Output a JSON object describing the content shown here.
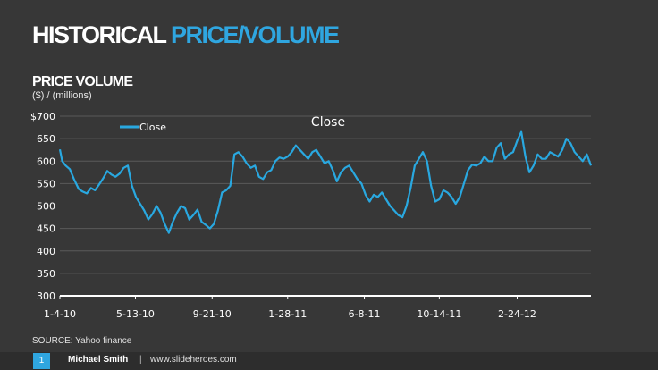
{
  "title": {
    "part1": "HISTORICAL ",
    "part2": "PRICE/VOLUME"
  },
  "subtitle": "PRICE VOLUME",
  "units": "($) / (millions)",
  "source": "SOURCE: Yahoo finance",
  "footer": {
    "page": "1",
    "author": "Michael Smith",
    "separator": "|",
    "site": "www.slideheroes.com"
  },
  "colors": {
    "background": "#373737",
    "accent": "#2fa6e0",
    "line": "#29a8e0",
    "grid": "#5a5a5a"
  },
  "chart_data": {
    "type": "line",
    "title": "Close",
    "legend": {
      "label": "Close",
      "position": "top-left"
    },
    "ylim": [
      300,
      700
    ],
    "yticks": [
      300,
      350,
      400,
      450,
      500,
      550,
      600,
      650,
      700
    ],
    "ytick_labels": [
      "300",
      "350",
      "400",
      "450",
      "500",
      "550",
      "600",
      "650",
      "$700"
    ],
    "xlim": [
      "2010-01-04",
      "2012-06-29"
    ],
    "xticks": [
      "2010-01-04",
      "2010-05-13",
      "2010-09-21",
      "2011-01-28",
      "2011-06-08",
      "2011-10-14",
      "2012-02-24"
    ],
    "xtick_labels": [
      "1-4-10",
      "5-13-10",
      "9-21-10",
      "1-28-11",
      "6-8-11",
      "10-14-11",
      "2-24-12"
    ],
    "grid": true,
    "series": [
      {
        "name": "Close",
        "x": [
          "2010-01-04",
          "2010-01-08",
          "2010-01-14",
          "2010-01-21",
          "2010-01-28",
          "2010-02-05",
          "2010-02-12",
          "2010-02-19",
          "2010-02-26",
          "2010-03-05",
          "2010-03-12",
          "2010-03-19",
          "2010-03-26",
          "2010-04-02",
          "2010-04-09",
          "2010-04-16",
          "2010-04-23",
          "2010-04-30",
          "2010-05-07",
          "2010-05-14",
          "2010-05-21",
          "2010-05-28",
          "2010-06-04",
          "2010-06-11",
          "2010-06-18",
          "2010-06-25",
          "2010-07-02",
          "2010-07-09",
          "2010-07-16",
          "2010-07-23",
          "2010-07-30",
          "2010-08-06",
          "2010-08-13",
          "2010-08-20",
          "2010-08-27",
          "2010-09-03",
          "2010-09-10",
          "2010-09-17",
          "2010-09-24",
          "2010-10-01",
          "2010-10-08",
          "2010-10-15",
          "2010-10-22",
          "2010-10-29",
          "2010-11-05",
          "2010-11-12",
          "2010-11-19",
          "2010-11-26",
          "2010-12-03",
          "2010-12-10",
          "2010-12-17",
          "2010-12-24",
          "2010-12-31",
          "2011-01-07",
          "2011-01-14",
          "2011-01-21",
          "2011-01-28",
          "2011-02-04",
          "2011-02-11",
          "2011-02-18",
          "2011-02-25",
          "2011-03-04",
          "2011-03-11",
          "2011-03-18",
          "2011-03-25",
          "2011-04-01",
          "2011-04-08",
          "2011-04-15",
          "2011-04-22",
          "2011-04-29",
          "2011-05-06",
          "2011-05-13",
          "2011-05-20",
          "2011-05-27",
          "2011-06-03",
          "2011-06-10",
          "2011-06-17",
          "2011-06-24",
          "2011-07-01",
          "2011-07-08",
          "2011-07-15",
          "2011-07-22",
          "2011-07-29",
          "2011-08-05",
          "2011-08-12",
          "2011-08-19",
          "2011-08-26",
          "2011-09-02",
          "2011-09-09",
          "2011-09-16",
          "2011-09-23",
          "2011-09-30",
          "2011-10-07",
          "2011-10-14",
          "2011-10-21",
          "2011-10-28",
          "2011-11-04",
          "2011-11-11",
          "2011-11-18",
          "2011-11-25",
          "2011-12-02",
          "2011-12-09",
          "2011-12-16",
          "2011-12-23",
          "2011-12-30",
          "2012-01-06",
          "2012-01-13",
          "2012-01-20",
          "2012-01-27",
          "2012-02-03",
          "2012-02-10",
          "2012-02-17",
          "2012-02-24",
          "2012-03-02",
          "2012-03-09",
          "2012-03-16",
          "2012-03-23",
          "2012-03-30",
          "2012-04-06",
          "2012-04-13",
          "2012-04-20",
          "2012-04-27",
          "2012-05-04",
          "2012-05-11",
          "2012-05-18",
          "2012-05-25",
          "2012-06-01",
          "2012-06-08",
          "2012-06-15",
          "2012-06-22",
          "2012-06-29"
        ],
        "y": [
          626,
          600,
          590,
          582,
          560,
          538,
          532,
          528,
          540,
          535,
          548,
          562,
          578,
          570,
          565,
          572,
          585,
          590,
          545,
          520,
          505,
          490,
          470,
          482,
          500,
          485,
          460,
          440,
          465,
          485,
          500,
          495,
          470,
          480,
          492,
          465,
          458,
          450,
          460,
          490,
          530,
          535,
          545,
          615,
          620,
          610,
          595,
          585,
          590,
          565,
          560,
          575,
          580,
          600,
          608,
          605,
          610,
          620,
          635,
          625,
          615,
          605,
          620,
          625,
          610,
          595,
          600,
          580,
          555,
          575,
          585,
          590,
          575,
          560,
          550,
          525,
          510,
          525,
          520,
          530,
          515,
          500,
          490,
          480,
          475,
          500,
          540,
          590,
          605,
          620,
          600,
          545,
          510,
          515,
          535,
          530,
          520,
          505,
          520,
          550,
          580,
          592,
          590,
          595,
          610,
          600,
          600,
          630,
          640,
          605,
          615,
          620,
          645,
          665,
          610,
          575,
          590,
          615,
          605,
          605,
          620,
          615,
          610,
          625,
          650,
          640,
          620,
          610,
          600,
          615,
          590
        ]
      }
    ]
  }
}
